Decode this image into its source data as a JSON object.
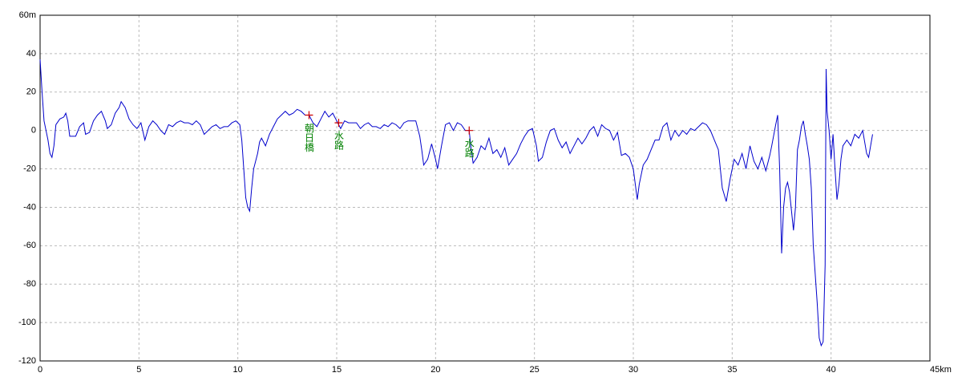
{
  "chart_data": {
    "type": "line",
    "color": "#0000cc",
    "grid": true,
    "xlim": [
      0,
      45
    ],
    "ylim": [
      -120,
      60
    ],
    "xticks": [
      0,
      5,
      10,
      15,
      20,
      25,
      30,
      35,
      40,
      {
        "value": 45,
        "label": "45km"
      }
    ],
    "yticks": [
      {
        "value": 60,
        "label": "60m"
      },
      40,
      20,
      0,
      -20,
      -40,
      -60,
      -80,
      -100,
      -120
    ],
    "annotations": [
      {
        "text": "朝日橋",
        "x": 13.6,
        "y": 8,
        "color": "#cc0000",
        "text_color": "#008000"
      },
      {
        "text": "水路",
        "x": 15.1,
        "y": 4,
        "color": "#cc0000",
        "text_color": "#008000"
      },
      {
        "text": "水路",
        "x": 21.7,
        "y": 0,
        "color": "#cc0000",
        "text_color": "#008000"
      }
    ],
    "x": [
      0,
      0.1,
      0.2,
      0.4,
      0.5,
      0.6,
      0.7,
      0.8,
      1.0,
      1.2,
      1.3,
      1.4,
      1.5,
      1.6,
      1.8,
      2.0,
      2.2,
      2.3,
      2.5,
      2.7,
      2.9,
      3.1,
      3.3,
      3.4,
      3.6,
      3.8,
      4.0,
      4.1,
      4.3,
      4.5,
      4.7,
      4.9,
      5.1,
      5.3,
      5.5,
      5.7,
      5.9,
      6.1,
      6.3,
      6.5,
      6.7,
      6.9,
      7.1,
      7.3,
      7.5,
      7.7,
      7.9,
      8.1,
      8.3,
      8.5,
      8.7,
      8.9,
      9.1,
      9.3,
      9.5,
      9.7,
      9.9,
      10.1,
      10.2,
      10.3,
      10.4,
      10.5,
      10.6,
      10.7,
      10.8,
      11.0,
      11.1,
      11.2,
      11.4,
      11.6,
      11.8,
      12.0,
      12.2,
      12.4,
      12.6,
      12.8,
      13.0,
      13.2,
      13.4,
      13.6,
      13.8,
      14.0,
      14.2,
      14.4,
      14.6,
      14.8,
      15.0,
      15.2,
      15.4,
      15.6,
      15.8,
      16.0,
      16.2,
      16.4,
      16.6,
      16.8,
      17.0,
      17.2,
      17.4,
      17.6,
      17.8,
      18.0,
      18.2,
      18.4,
      18.6,
      18.8,
      19.0,
      19.2,
      19.3,
      19.4,
      19.6,
      19.8,
      20.0,
      20.1,
      20.3,
      20.5,
      20.7,
      20.9,
      21.1,
      21.3,
      21.5,
      21.7,
      21.8,
      21.9,
      22.1,
      22.3,
      22.5,
      22.7,
      22.9,
      23.1,
      23.3,
      23.5,
      23.7,
      23.9,
      24.1,
      24.3,
      24.5,
      24.7,
      24.9,
      25.1,
      25.2,
      25.4,
      25.6,
      25.8,
      26.0,
      26.2,
      26.4,
      26.6,
      26.8,
      27.0,
      27.2,
      27.4,
      27.6,
      27.8,
      28.0,
      28.2,
      28.4,
      28.6,
      28.8,
      29.0,
      29.2,
      29.4,
      29.6,
      29.8,
      30.0,
      30.2,
      30.3,
      30.5,
      30.7,
      30.9,
      31.1,
      31.3,
      31.5,
      31.7,
      31.9,
      32.1,
      32.3,
      32.5,
      32.7,
      32.9,
      33.1,
      33.3,
      33.5,
      33.7,
      33.9,
      34.1,
      34.3,
      34.5,
      34.7,
      34.9,
      35.1,
      35.3,
      35.5,
      35.7,
      35.9,
      36.1,
      36.3,
      36.5,
      36.7,
      36.9,
      37.0,
      37.2,
      37.3,
      37.4,
      37.5,
      37.6,
      37.7,
      37.8,
      37.9,
      38.0,
      38.1,
      38.2,
      38.3,
      38.4,
      38.5,
      38.6,
      38.7,
      38.8,
      38.9,
      39.0,
      39.1,
      39.3,
      39.4,
      39.5,
      39.6,
      39.7,
      39.75,
      39.8,
      39.9,
      40.0,
      40.1,
      40.2,
      40.3,
      40.4,
      40.5,
      40.6,
      40.8,
      41.0,
      41.2,
      41.4,
      41.6,
      41.8,
      41.9,
      42.0,
      42.1
    ],
    "values": [
      37,
      20,
      5,
      -5,
      -12,
      -14,
      -8,
      3,
      6,
      7,
      9,
      5,
      -3,
      -3,
      -3,
      2,
      4,
      -2,
      -1,
      5,
      8,
      10,
      5,
      1,
      3,
      9,
      12,
      15,
      12,
      6,
      3,
      1,
      4,
      -5,
      2,
      5,
      3,
      0,
      -2,
      3,
      2,
      4,
      5,
      4,
      4,
      3,
      5,
      3,
      -2,
      0,
      2,
      3,
      1,
      2,
      2,
      4,
      5,
      3,
      -5,
      -20,
      -35,
      -40,
      -42,
      -30,
      -20,
      -12,
      -6,
      -4,
      -8,
      -2,
      2,
      6,
      8,
      10,
      8,
      9,
      11,
      10,
      8,
      8,
      4,
      2,
      6,
      10,
      7,
      9,
      5,
      1,
      5,
      4,
      4,
      4,
      1,
      3,
      4,
      2,
      2,
      1,
      3,
      2,
      4,
      3,
      1,
      4,
      5,
      5,
      5,
      -3,
      -10,
      -18,
      -15,
      -7,
      -15,
      -20,
      -8,
      3,
      4,
      0,
      4,
      3,
      0,
      0,
      -10,
      -17,
      -14,
      -8,
      -10,
      -4,
      -12,
      -10,
      -14,
      -9,
      -18,
      -15,
      -12,
      -7,
      -3,
      0,
      1,
      -8,
      -16,
      -14,
      -6,
      0,
      1,
      -5,
      -9,
      -6,
      -12,
      -8,
      -4,
      -7,
      -4,
      0,
      2,
      -3,
      3,
      1,
      0,
      -5,
      -1,
      -13,
      -12,
      -14,
      -20,
      -36,
      -28,
      -18,
      -15,
      -10,
      -5,
      -5,
      2,
      4,
      -5,
      0,
      -3,
      0,
      -2,
      1,
      0,
      2,
      4,
      3,
      0,
      -5,
      -10,
      -30,
      -37,
      -25,
      -15,
      -18,
      -12,
      -20,
      -8,
      -16,
      -20,
      -14,
      -21,
      -13,
      -8,
      3,
      8,
      -20,
      -64,
      -40,
      -30,
      -27,
      -32,
      -42,
      -52,
      -40,
      -10,
      -5,
      2,
      5,
      -2,
      -8,
      -15,
      -30,
      -60,
      -90,
      -108,
      -112,
      -110,
      -70,
      32,
      10,
      0,
      -15,
      -2,
      -20,
      -36,
      -28,
      -15,
      -8,
      -5,
      -8,
      -2,
      -4,
      0,
      -12,
      -14,
      -8,
      -2
    ]
  }
}
